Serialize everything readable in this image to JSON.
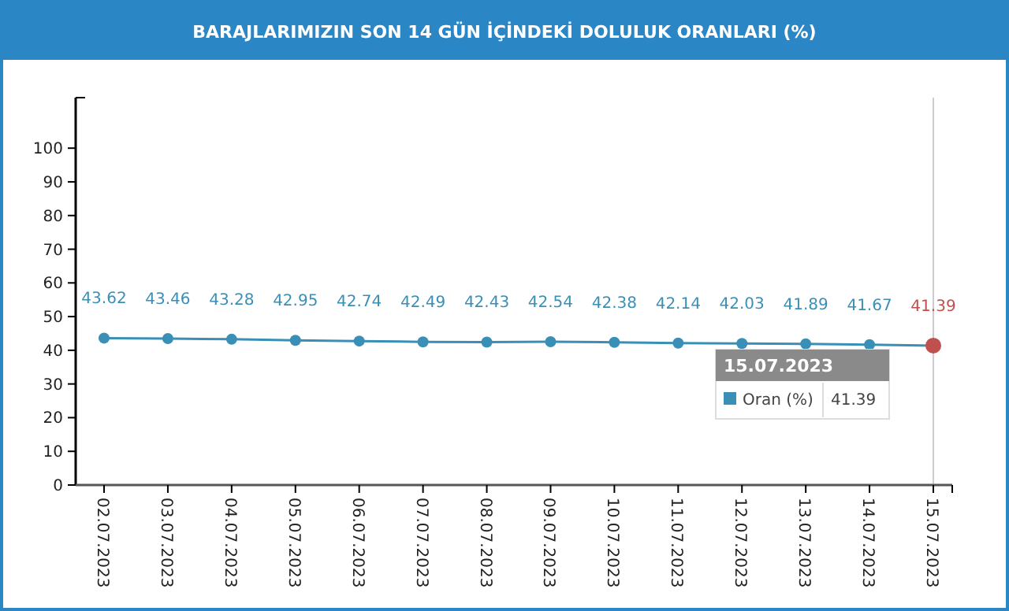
{
  "chart_data": {
    "type": "line",
    "title": "BARAJLARIMIZIN SON 14 GÜN İÇİNDEKİ DOLULUK ORANLARI (%)",
    "categories": [
      "02.07.2023",
      "03.07.2023",
      "04.07.2023",
      "05.07.2023",
      "06.07.2023",
      "07.07.2023",
      "08.07.2023",
      "09.07.2023",
      "10.07.2023",
      "11.07.2023",
      "12.07.2023",
      "13.07.2023",
      "14.07.2023",
      "15.07.2023"
    ],
    "series": [
      {
        "name": "Oran (%)",
        "color": "#3a8fb7",
        "colors": [
          "#3a8fb7",
          "#3a8fb7",
          "#3a8fb7",
          "#3a8fb7",
          "#3a8fb7",
          "#3a8fb7",
          "#3a8fb7",
          "#3a8fb7",
          "#3a8fb7",
          "#3a8fb7",
          "#3a8fb7",
          "#3a8fb7",
          "#3a8fb7",
          "#c0504d"
        ],
        "values": [
          43.62,
          43.46,
          43.28,
          42.95,
          42.74,
          42.49,
          42.43,
          42.54,
          42.38,
          42.14,
          42.03,
          41.89,
          41.67,
          41.39
        ]
      }
    ],
    "ylim": [
      0,
      115
    ],
    "yticks": [
      0,
      10,
      20,
      30,
      40,
      50,
      60,
      70,
      80,
      90,
      100
    ],
    "data_labels": true,
    "marker": "circle",
    "grid": false,
    "legend": "bottom right",
    "ref_lines": [
      {
        "axis": "x",
        "value": "15.07.2023",
        "color": "#cccccc"
      }
    ],
    "annotations": [
      "41.39"
    ]
  }
}
